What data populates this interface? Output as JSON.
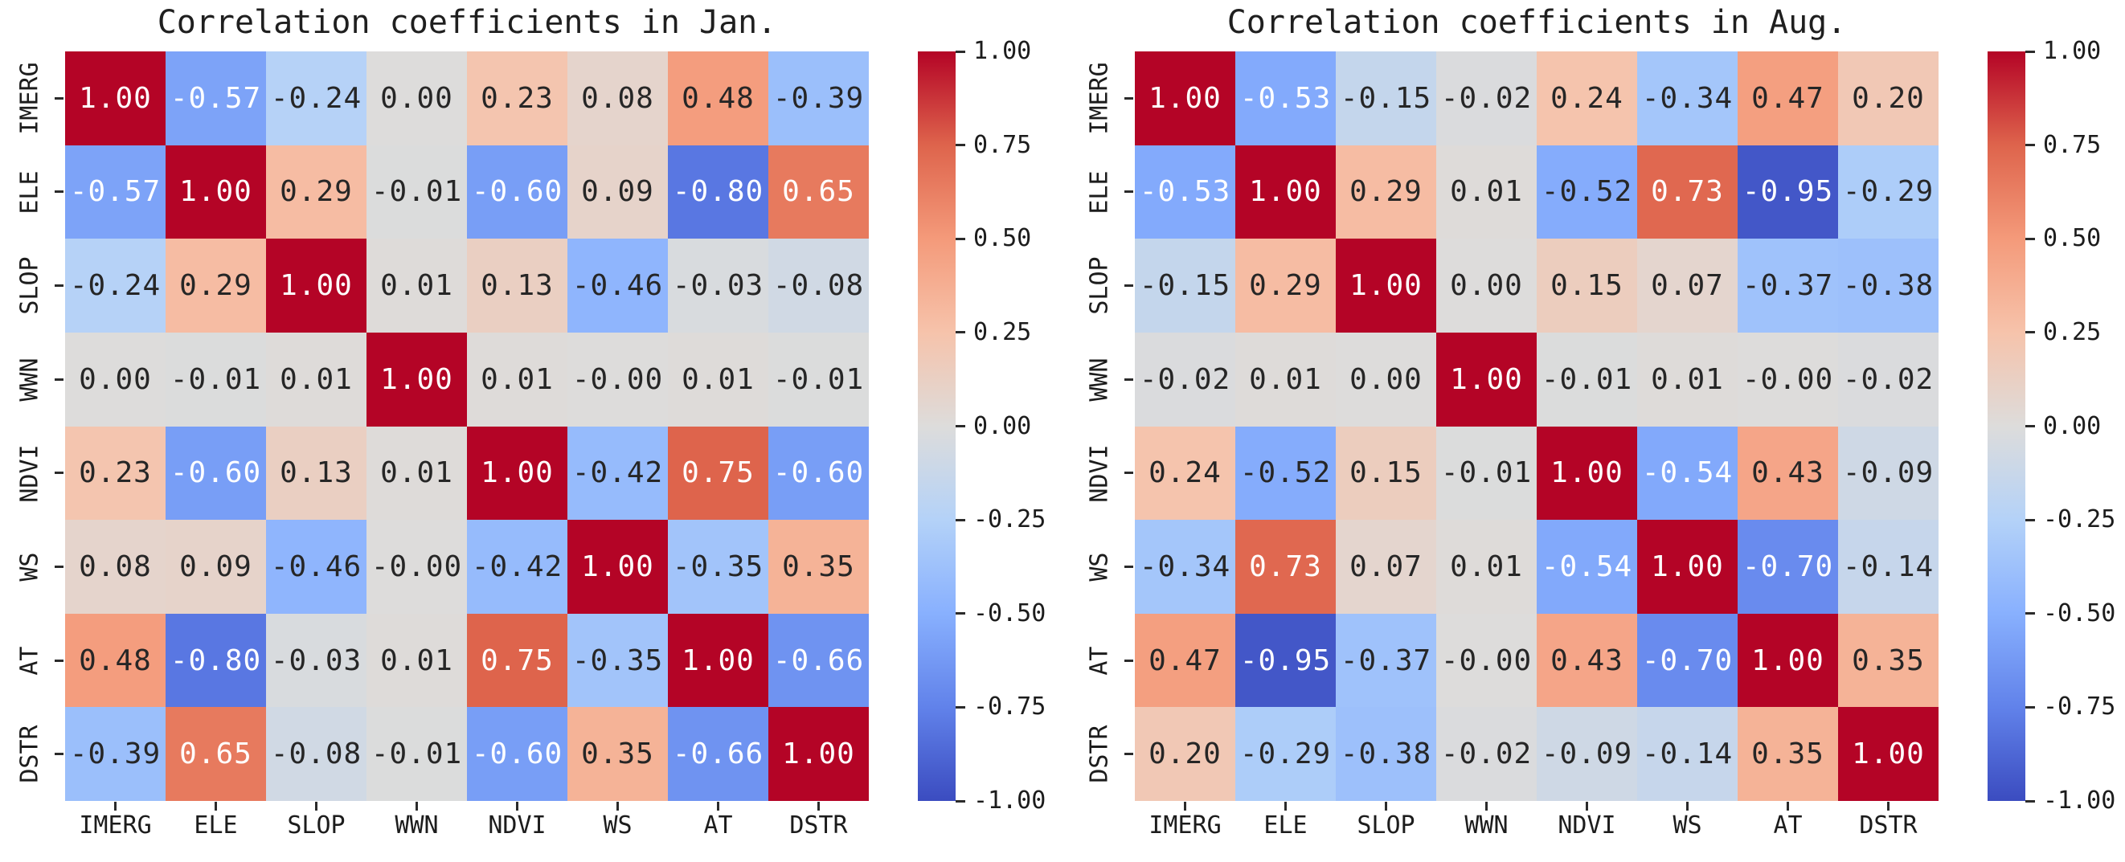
{
  "chart_data": [
    {
      "type": "heatmap",
      "title": "Correlation coefficients in Jan.",
      "categories": [
        "IMERG",
        "ELE",
        "SLOP",
        "WWN",
        "NDVI",
        "WS",
        "AT",
        "DSTR"
      ],
      "matrix": [
        [
          "1.00",
          "-0.57",
          "-0.24",
          "0.00",
          "0.23",
          "0.08",
          "0.48",
          "-0.39"
        ],
        [
          "-0.57",
          "1.00",
          "0.29",
          "-0.01",
          "-0.60",
          "0.09",
          "-0.80",
          "0.65"
        ],
        [
          "-0.24",
          "0.29",
          "1.00",
          "0.01",
          "0.13",
          "-0.46",
          "-0.03",
          "-0.08"
        ],
        [
          "0.00",
          "-0.01",
          "0.01",
          "1.00",
          "0.01",
          "-0.00",
          "0.01",
          "-0.01"
        ],
        [
          "0.23",
          "-0.60",
          "0.13",
          "0.01",
          "1.00",
          "-0.42",
          "0.75",
          "-0.60"
        ],
        [
          "0.08",
          "0.09",
          "-0.46",
          "-0.00",
          "-0.42",
          "1.00",
          "-0.35",
          "0.35"
        ],
        [
          "0.48",
          "-0.80",
          "-0.03",
          "0.01",
          "0.75",
          "-0.35",
          "1.00",
          "-0.66"
        ],
        [
          "-0.39",
          "0.65",
          "-0.08",
          "-0.01",
          "-0.60",
          "0.35",
          "-0.66",
          "1.00"
        ]
      ],
      "vmin": -1,
      "vmax": 1,
      "colormap": "coolwarm",
      "colorbar_position": "right",
      "colorbar_ticks": [
        "1.00",
        "0.75",
        "0.50",
        "0.25",
        "0.00",
        "-0.25",
        "-0.50",
        "-0.75",
        "-1.00"
      ]
    },
    {
      "type": "heatmap",
      "title": "Correlation coefficients in Aug.",
      "categories": [
        "IMERG",
        "ELE",
        "SLOP",
        "WWN",
        "NDVI",
        "WS",
        "AT",
        "DSTR"
      ],
      "matrix": [
        [
          "1.00",
          "-0.53",
          "-0.15",
          "-0.02",
          "0.24",
          "-0.34",
          "0.47",
          "0.20"
        ],
        [
          "-0.53",
          "1.00",
          "0.29",
          "0.01",
          "-0.52",
          "0.73",
          "-0.95",
          "-0.29"
        ],
        [
          "-0.15",
          "0.29",
          "1.00",
          "0.00",
          "0.15",
          "0.07",
          "-0.37",
          "-0.38"
        ],
        [
          "-0.02",
          "0.01",
          "0.00",
          "1.00",
          "-0.01",
          "0.01",
          "-0.00",
          "-0.02"
        ],
        [
          "0.24",
          "-0.52",
          "0.15",
          "-0.01",
          "1.00",
          "-0.54",
          "0.43",
          "-0.09"
        ],
        [
          "-0.34",
          "0.73",
          "0.07",
          "0.01",
          "-0.54",
          "1.00",
          "-0.70",
          "-0.14"
        ],
        [
          "0.47",
          "-0.95",
          "-0.37",
          "-0.00",
          "0.43",
          "-0.70",
          "1.00",
          "0.35"
        ],
        [
          "0.20",
          "-0.29",
          "-0.38",
          "-0.02",
          "-0.09",
          "-0.14",
          "0.35",
          "1.00"
        ]
      ],
      "vmin": -1,
      "vmax": 1,
      "colormap": "coolwarm",
      "colorbar_position": "right",
      "colorbar_ticks": [
        "1.00",
        "0.75",
        "0.50",
        "0.25",
        "0.00",
        "-0.25",
        "-0.50",
        "-0.75",
        "-1.00"
      ]
    }
  ],
  "colors": {
    "colormap_anchors": [
      "#3b4cc0",
      "#6182ea",
      "#88b0fe",
      "#b4d2f8",
      "#dddcdb",
      "#f6c3ab",
      "#f49a7a",
      "#de644c",
      "#b40426"
    ],
    "annotation_dark": "#262626",
    "annotation_light": "#ffffff",
    "axis_text": "#1c1c1c",
    "tick_mark": "#2b2b2b",
    "background": "#ffffff"
  }
}
